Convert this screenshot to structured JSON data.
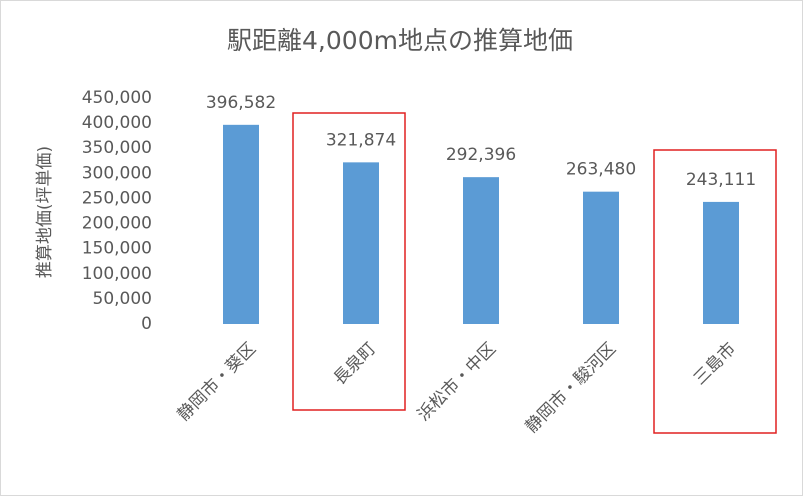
{
  "chart_data": {
    "type": "bar",
    "title": "駅距離4,000m地点の推算地価",
    "y_label": "推算地価(坪単価)",
    "categories": [
      "静岡市・葵区",
      "長泉町",
      "浜松市・中区",
      "静岡市・駿河区",
      "三島市"
    ],
    "values": [
      396582,
      321874,
      292396,
      263480,
      243111
    ],
    "value_labels": [
      "396,582",
      "321,874",
      "292,396",
      "263,480",
      "243,111"
    ],
    "color": "#5b9bd5",
    "ylim": [
      0,
      450000
    ],
    "yticks": [
      0,
      {
        "value": 50000,
        "label": "50,000"
      },
      {
        "value": 100000,
        "label": "100,000"
      },
      {
        "value": 150000,
        "label": "150,000"
      },
      {
        "value": 200000,
        "label": "200,000"
      },
      {
        "value": 250000,
        "label": "250,000"
      },
      {
        "value": 300000,
        "label": "300,000"
      },
      {
        "value": 350000,
        "label": "350,000"
      },
      {
        "value": 400000,
        "label": "400,000"
      },
      {
        "value": 450000,
        "label": "450,000"
      }
    ],
    "grid": false
  }
}
